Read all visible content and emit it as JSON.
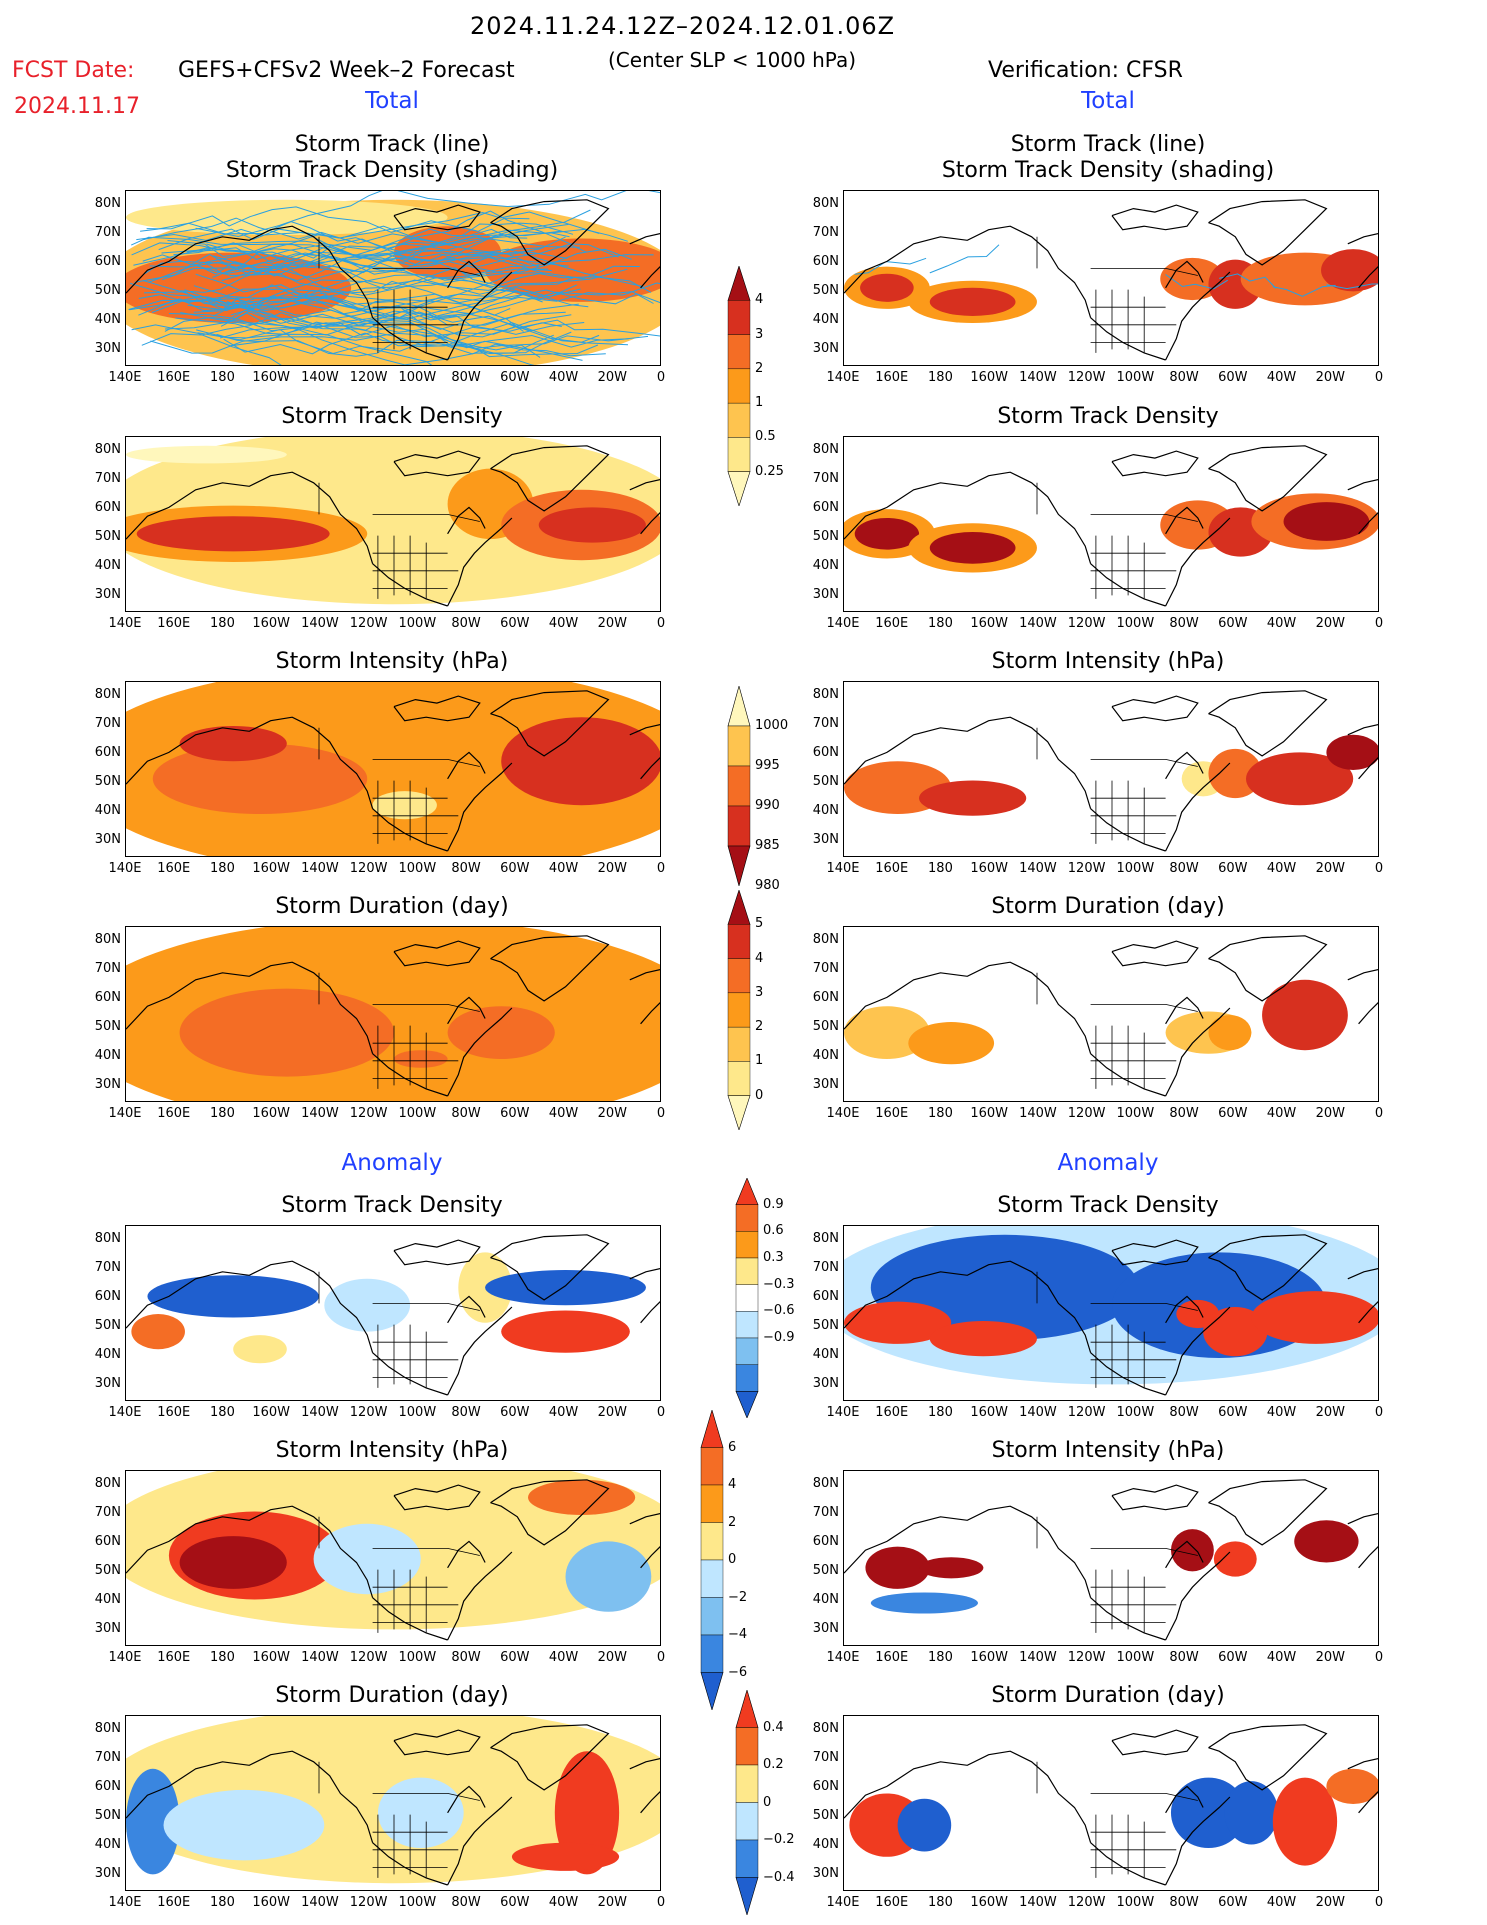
{
  "header": {
    "period": "2024.11.24.12Z–2024.12.01.06Z",
    "fcst_date_label": "FCST Date:",
    "fcst_date_value": "2024.11.17",
    "product": "GEFS+CFSv2 Week–2 Forecast",
    "criterion": "(Center SLP < 1000 hPa)",
    "verification": "Verification: CFSR"
  },
  "sections": {
    "total_left": "Total",
    "total_right": "Total",
    "anomaly_left": "Anomaly",
    "anomaly_right": "Anomaly"
  },
  "panel_titles": {
    "track_line": "Storm Track (line)",
    "track_shading": "Storm Track Density (shading)",
    "density": "Storm Track Density",
    "intensity": "Storm Intensity (hPa)",
    "duration": "Storm Duration (day)"
  },
  "axes": {
    "lat_labels": [
      "80N",
      "70N",
      "60N",
      "50N",
      "40N",
      "30N"
    ],
    "lon_labels": [
      "140E",
      "160E",
      "180",
      "160W",
      "140W",
      "120W",
      "100W",
      "80W",
      "60W",
      "40W",
      "20W",
      "0"
    ]
  },
  "colorbars": {
    "density_total": {
      "labels": [
        "4",
        "3",
        "2",
        "1",
        "0.5",
        "0.25"
      ],
      "colors": [
        "#a50f15",
        "#d7301f",
        "#f46d25",
        "#fc9a1a",
        "#fec44f",
        "#fee88b",
        "#fff7bc"
      ]
    },
    "intensity_total": {
      "labels": [
        "1000",
        "995",
        "990",
        "985",
        "980"
      ],
      "colors": [
        "#fff7bc",
        "#fec44f",
        "#f46d25",
        "#d7301f",
        "#a50f15"
      ]
    },
    "duration_total": {
      "labels": [
        "5",
        "4",
        "3",
        "2",
        "1",
        "0"
      ],
      "colors": [
        "#a50f15",
        "#d7301f",
        "#f46d25",
        "#fc9a1a",
        "#fec44f",
        "#fee88b",
        "#fff7bc"
      ]
    },
    "density_anom": {
      "labels": [
        "0.9",
        "0.6",
        "0.3",
        "−0.3",
        "−0.6",
        "−0.9"
      ],
      "colors": [
        "#f03b20",
        "#f46d25",
        "#fc9a1a",
        "#fee88b",
        "#ffffff",
        "#bfe6ff",
        "#7ec0f0",
        "#3a86e0",
        "#1f5fcf"
      ]
    },
    "intensity_anom": {
      "labels": [
        "6",
        "4",
        "2",
        "0",
        "−2",
        "−4",
        "−6"
      ],
      "colors": [
        "#f03b20",
        "#f46d25",
        "#fc9a1a",
        "#fee88b",
        "#bfe6ff",
        "#7ec0f0",
        "#3a86e0",
        "#1f5fcf"
      ]
    },
    "duration_anom": {
      "labels": [
        "0.4",
        "0.2",
        "0",
        "−0.2",
        "−0.4"
      ],
      "colors": [
        "#f03b20",
        "#f46d25",
        "#fee88b",
        "#bfe6ff",
        "#3a86e0",
        "#1f5fcf"
      ]
    }
  },
  "colors": {
    "title_red": "#e8202a",
    "section_blue": "#2040ff",
    "track_line": "#2aa0e0"
  }
}
